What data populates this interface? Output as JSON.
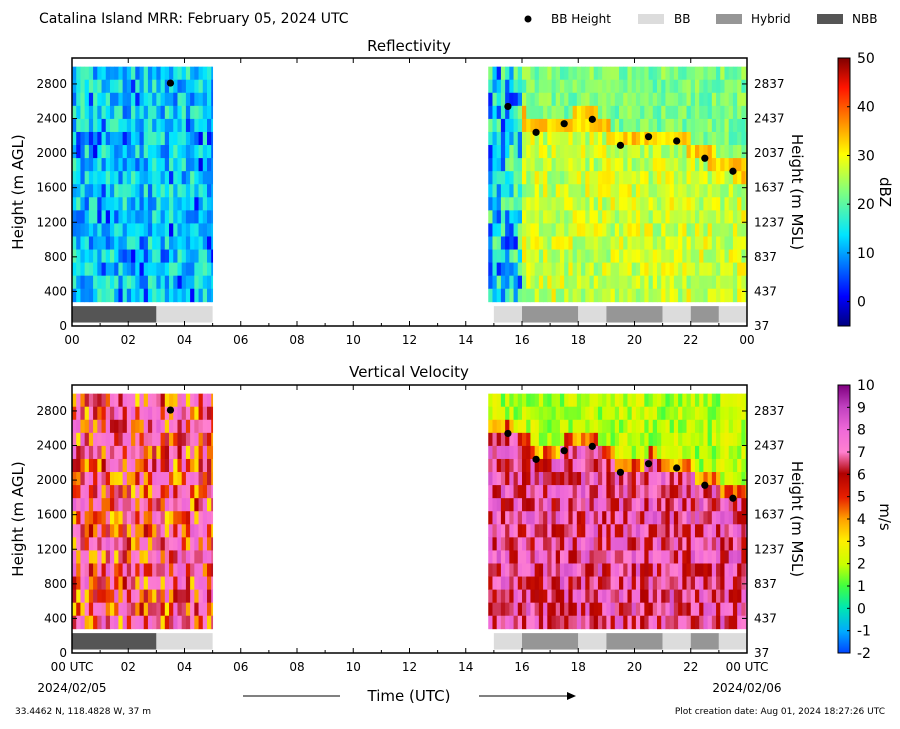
{
  "header": {
    "title": "Catalina Island MRR:  February 05, 2024 UTC"
  },
  "legend": {
    "placement": "top-right",
    "items": [
      {
        "label": "BB Height",
        "symbol": "dot",
        "color": "#000000"
      },
      {
        "label": "BB",
        "symbol": "swatch",
        "color": "#dcdcdc"
      },
      {
        "label": "Hybrid",
        "symbol": "swatch",
        "color": "#969696"
      },
      {
        "label": "NBB",
        "symbol": "swatch",
        "color": "#555555"
      }
    ]
  },
  "chart_data": [
    {
      "type": "heatmap",
      "title": "Reflectivity",
      "ylabel": "Height (m AGL)",
      "y2label": "Height (m MSL)",
      "colorbar_label": "dBZ",
      "colorbar_range": [
        -5,
        50
      ],
      "colorbar_ticks": [
        "0",
        "10",
        "20",
        "30",
        "40",
        "50"
      ],
      "colorbar_tick_values": [
        0,
        10,
        20,
        30,
        40,
        50
      ],
      "colorscale": "jet",
      "xlim": [
        0,
        24
      ],
      "ylim": [
        0,
        3100
      ],
      "x_ticks": [
        "00",
        "02",
        "04",
        "06",
        "08",
        "10",
        "12",
        "14",
        "16",
        "18",
        "20",
        "22",
        "00"
      ],
      "y_ticks": [
        "0",
        "400",
        "800",
        "1200",
        "1600",
        "2000",
        "2400",
        "2800"
      ],
      "y2_ticks": [
        "37",
        "437",
        "837",
        "1237",
        "1637",
        "2037",
        "2437",
        "2837"
      ],
      "data_coverage_hours": [
        [
          0,
          5
        ],
        [
          14.8,
          24
        ]
      ],
      "field_height_range": [
        280,
        3000
      ],
      "bb_height": [
        {
          "x": 3.5,
          "y": 2810
        },
        {
          "x": 15.5,
          "y": 2540
        },
        {
          "x": 16.5,
          "y": 2240
        },
        {
          "x": 17.5,
          "y": 2340
        },
        {
          "x": 18.5,
          "y": 2390
        },
        {
          "x": 19.5,
          "y": 2090
        },
        {
          "x": 20.5,
          "y": 2190
        },
        {
          "x": 21.5,
          "y": 2140
        },
        {
          "x": 22.5,
          "y": 1940
        },
        {
          "x": 23.5,
          "y": 1790
        }
      ],
      "bb_type": [
        {
          "start": 0,
          "end": 3,
          "type": "NBB"
        },
        {
          "start": 3,
          "end": 5,
          "type": "BB"
        },
        {
          "start": 15,
          "end": 16,
          "type": "BB"
        },
        {
          "start": 16,
          "end": 18,
          "type": "Hybrid"
        },
        {
          "start": 18,
          "end": 19,
          "type": "BB"
        },
        {
          "start": 19,
          "end": 21,
          "type": "Hybrid"
        },
        {
          "start": 21,
          "end": 22,
          "type": "BB"
        },
        {
          "start": 22,
          "end": 23,
          "type": "Hybrid"
        },
        {
          "start": 23,
          "end": 24,
          "type": "BB"
        }
      ]
    },
    {
      "type": "heatmap",
      "title": "Vertical Velocity",
      "ylabel": "Height (m AGL)",
      "y2label": "Height (m MSL)",
      "colorbar_label": "m/s",
      "colorbar_range": [
        -2,
        10
      ],
      "colorbar_ticks": [
        "-2",
        "-1",
        "0",
        "1",
        "2",
        "3",
        "4",
        "5",
        "6",
        "7",
        "8",
        "9",
        "10"
      ],
      "colorbar_tick_values": [
        -2,
        -1,
        0,
        1,
        2,
        3,
        4,
        5,
        6,
        7,
        8,
        9,
        10
      ],
      "colorscale": "velocity",
      "xlim": [
        0,
        24
      ],
      "ylim": [
        0,
        3100
      ],
      "x_ticks": [
        "00 UTC",
        "02",
        "04",
        "06",
        "08",
        "10",
        "12",
        "14",
        "16",
        "18",
        "20",
        "22",
        "00 UTC"
      ],
      "x_date_labels": [
        "2024/02/05",
        "2024/02/06"
      ],
      "xlabel": "Time (UTC)",
      "y_ticks": [
        "0",
        "400",
        "800",
        "1200",
        "1600",
        "2000",
        "2400",
        "2800"
      ],
      "y2_ticks": [
        "37",
        "437",
        "837",
        "1237",
        "1637",
        "2037",
        "2437",
        "2837"
      ],
      "data_coverage_hours": [
        [
          0,
          5
        ],
        [
          14.8,
          24
        ]
      ],
      "field_height_range": [
        280,
        3000
      ],
      "bb_height": [
        {
          "x": 3.5,
          "y": 2810
        },
        {
          "x": 15.5,
          "y": 2540
        },
        {
          "x": 16.5,
          "y": 2240
        },
        {
          "x": 17.5,
          "y": 2340
        },
        {
          "x": 18.5,
          "y": 2390
        },
        {
          "x": 19.5,
          "y": 2090
        },
        {
          "x": 20.5,
          "y": 2190
        },
        {
          "x": 21.5,
          "y": 2140
        },
        {
          "x": 22.5,
          "y": 1940
        },
        {
          "x": 23.5,
          "y": 1790
        }
      ],
      "bb_type": [
        {
          "start": 0,
          "end": 3,
          "type": "NBB"
        },
        {
          "start": 3,
          "end": 5,
          "type": "BB"
        },
        {
          "start": 15,
          "end": 16,
          "type": "BB"
        },
        {
          "start": 16,
          "end": 18,
          "type": "Hybrid"
        },
        {
          "start": 18,
          "end": 19,
          "type": "BB"
        },
        {
          "start": 19,
          "end": 21,
          "type": "Hybrid"
        },
        {
          "start": 21,
          "end": 22,
          "type": "BB"
        },
        {
          "start": 22,
          "end": 23,
          "type": "Hybrid"
        },
        {
          "start": 23,
          "end": 24,
          "type": "BB"
        }
      ]
    }
  ],
  "footer": {
    "location": "33.4462 N, 118.4828 W, 37 m",
    "creation": "Plot creation date: Aug 01, 2024 18:27:26 UTC"
  }
}
